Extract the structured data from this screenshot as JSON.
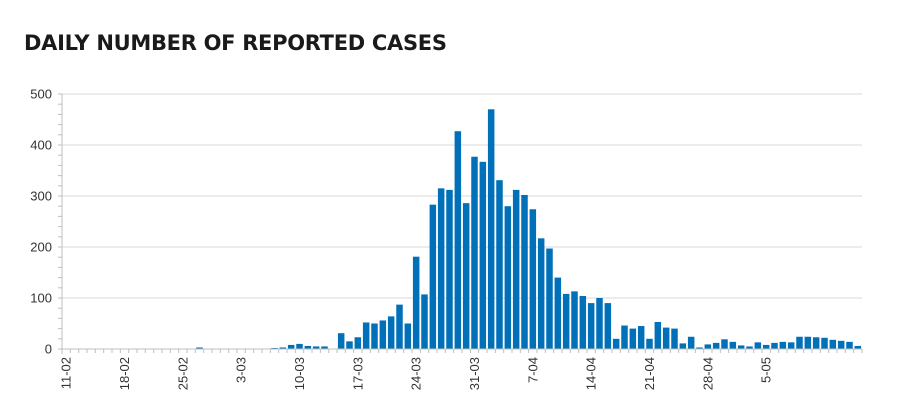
{
  "chart_data": {
    "type": "bar",
    "title": "DAILY NUMBER OF REPORTED CASES",
    "xlabel": "",
    "ylabel": "",
    "ylim": [
      0,
      500
    ],
    "yticks": [
      0,
      100,
      200,
      300,
      400,
      500
    ],
    "grid": "horizontal",
    "bar_color": "#0070b8",
    "x_tick_labels": [
      "11-02",
      "18-02",
      "25-02",
      "3-03",
      "10-03",
      "17-03",
      "24-03",
      "31-03",
      "7-04",
      "14-04",
      "21-04",
      "28-04",
      "5-05"
    ],
    "x_tick_every": 7,
    "values": [
      0,
      0,
      0,
      0,
      0,
      0,
      0,
      0,
      0,
      0,
      0,
      0,
      0,
      0,
      0,
      0,
      3,
      0,
      0,
      0,
      0,
      0,
      0,
      0,
      0,
      2,
      3,
      8,
      10,
      6,
      5,
      5,
      0,
      31,
      15,
      23,
      52,
      50,
      56,
      64,
      87,
      50,
      181,
      107,
      283,
      315,
      312,
      427,
      286,
      377,
      367,
      470,
      331,
      280,
      312,
      302,
      274,
      217,
      197,
      140,
      108,
      113,
      104,
      90,
      100,
      90,
      20,
      46,
      40,
      45,
      20,
      53,
      42,
      40,
      11,
      24,
      3,
      9,
      12,
      19,
      14,
      7,
      5,
      13,
      8,
      12,
      14,
      13,
      24,
      24,
      23,
      22,
      18,
      16,
      14,
      6
    ]
  }
}
